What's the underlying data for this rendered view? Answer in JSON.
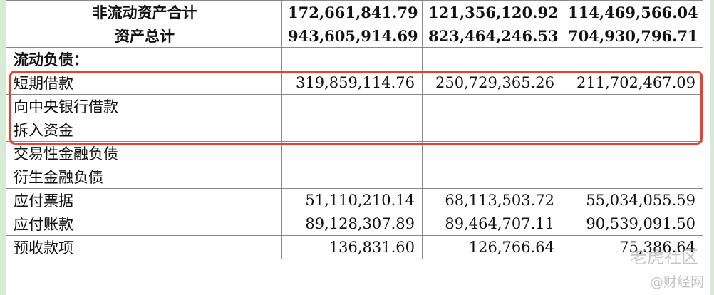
{
  "table": {
    "rows": [
      {
        "label": "非流动资产合计",
        "v1": "172,661,841.79",
        "v2": "121,356,120.92",
        "v3": "114,469,566.04",
        "style": "total"
      },
      {
        "label": "资产总计",
        "v1": "943,605,914.69",
        "v2": "823,464,246.53",
        "v3": "704,930,796.71",
        "style": "total"
      },
      {
        "label": "流动负债：",
        "v1": "",
        "v2": "",
        "v3": "",
        "style": "section"
      },
      {
        "label": "短期借款",
        "v1": "319,859,114.76",
        "v2": "250,729,365.26",
        "v3": "211,702,467.09",
        "style": "normal"
      },
      {
        "label": "向中央银行借款",
        "v1": "",
        "v2": "",
        "v3": "",
        "style": "normal"
      },
      {
        "label": "拆入资金",
        "v1": "",
        "v2": "",
        "v3": "",
        "style": "normal"
      },
      {
        "label": "交易性金融负债",
        "v1": "",
        "v2": "",
        "v3": "",
        "style": "normal"
      },
      {
        "label": "衍生金融负债",
        "v1": "",
        "v2": "",
        "v3": "",
        "style": "normal"
      },
      {
        "label": "应付票据",
        "v1": "51,110,210.14",
        "v2": "68,113,503.72",
        "v3": "55,034,055.59",
        "style": "normal"
      },
      {
        "label": "应付账款",
        "v1": "89,128,307.89",
        "v2": "89,464,707.11",
        "v3": "90,539,091.50",
        "style": "normal"
      },
      {
        "label": "预收款项",
        "v1": "136,831.60",
        "v2": "126,766.64",
        "v3": "75,386.64",
        "style": "normal"
      }
    ]
  },
  "highlight_color": "#e8412d",
  "watermark": {
    "top": "老虎社区",
    "bottom": "@财经网"
  }
}
